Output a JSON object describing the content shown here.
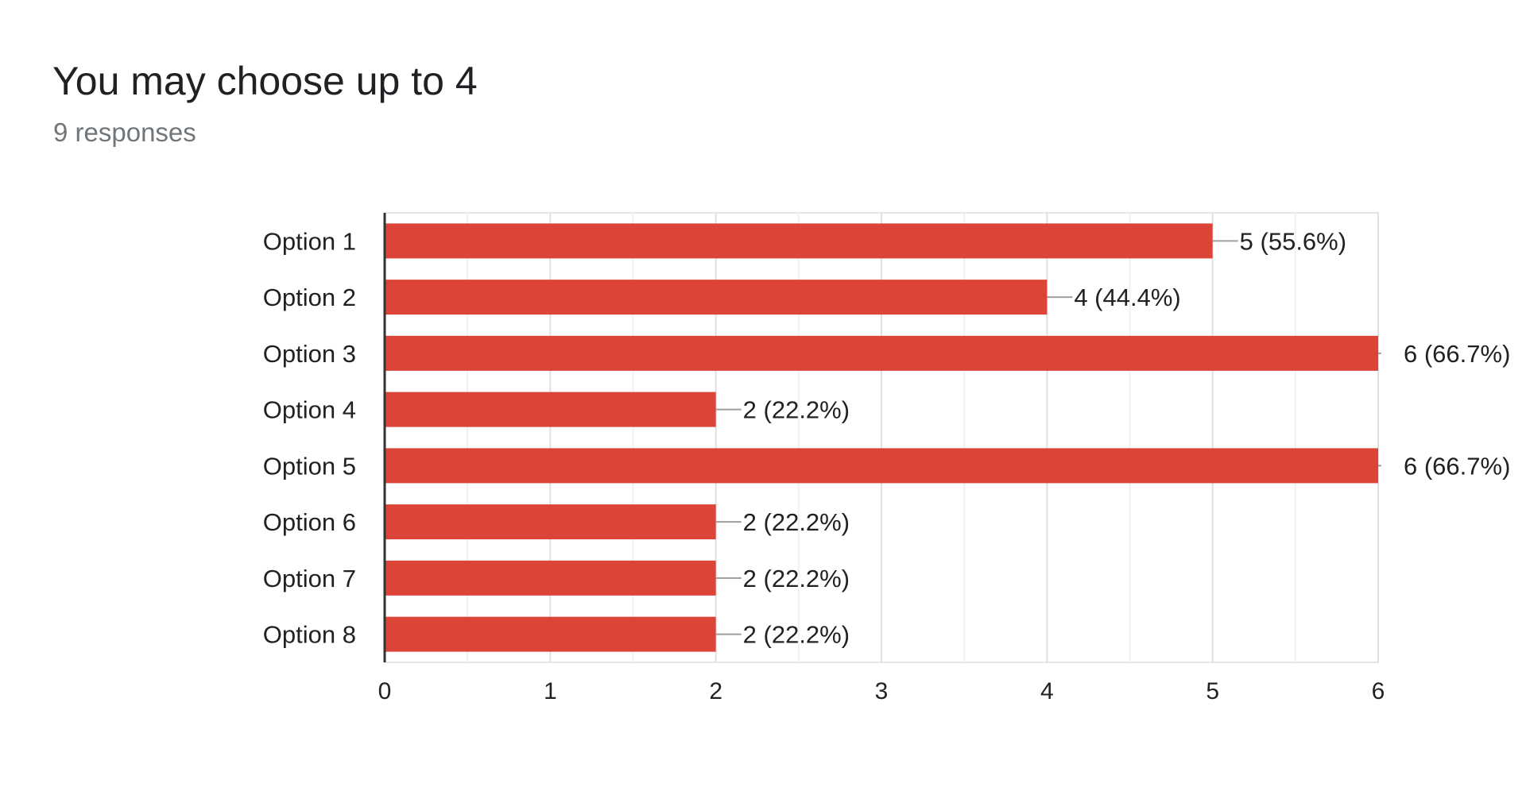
{
  "header": {
    "title": "You may choose up to 4",
    "responses": "9 responses"
  },
  "colors": {
    "bar": "#db4437",
    "grid": "#e6e6e6",
    "axis": "#333333",
    "leader": "#9e9e9e",
    "text": "#202124"
  },
  "chart_data": {
    "type": "bar",
    "orientation": "horizontal",
    "categories": [
      "Option 1",
      "Option 2",
      "Option 3",
      "Option 4",
      "Option 5",
      "Option 6",
      "Option 7",
      "Option 8"
    ],
    "values": [
      5,
      4,
      6,
      2,
      6,
      2,
      2,
      2
    ],
    "data_labels": [
      "5 (55.6%)",
      "4 (44.4%)",
      "6 (66.7%)",
      "2 (22.2%)",
      "6 (66.7%)",
      "2 (22.2%)",
      "2 (22.2%)",
      "2 (22.2%)"
    ],
    "xlim": [
      0,
      6
    ],
    "xticks": [
      0,
      1,
      2,
      3,
      4,
      5,
      6
    ],
    "grid": true,
    "title": "",
    "xlabel": "",
    "ylabel": ""
  }
}
